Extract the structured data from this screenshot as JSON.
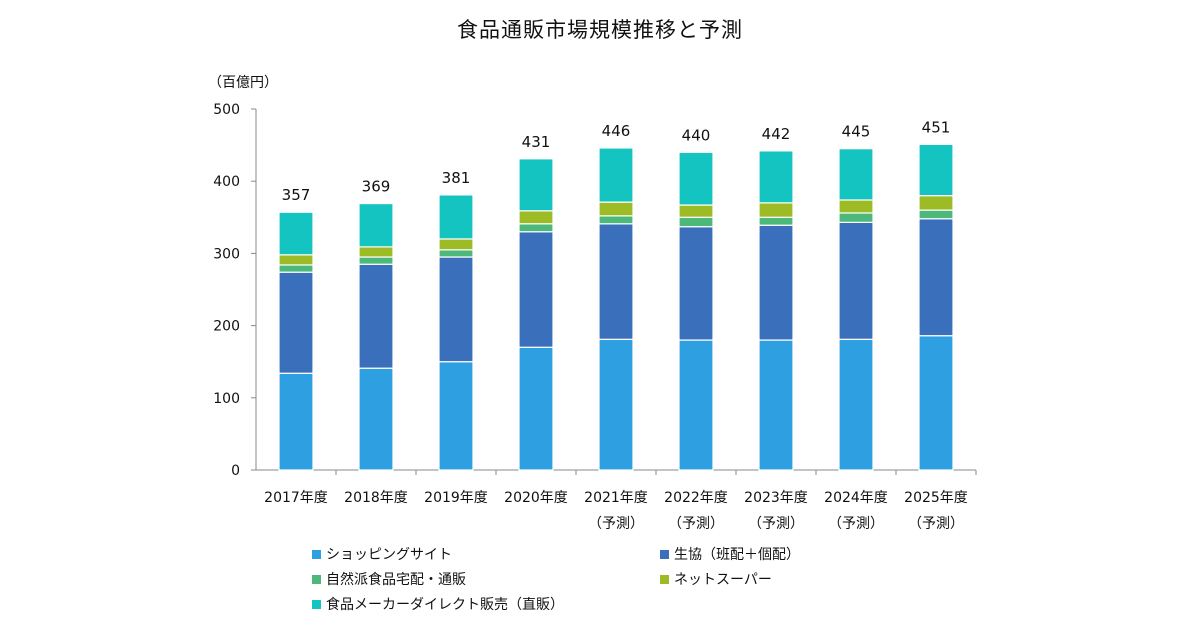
{
  "chart_data": {
    "type": "bar",
    "stacked": true,
    "title": "食品通販市場規模推移と予測",
    "ylabel": "（百億円）",
    "xlabel": "",
    "ylim": [
      0,
      500
    ],
    "yticks": [
      0,
      100,
      200,
      300,
      400,
      500
    ],
    "grid": false,
    "legend_position": "bottom",
    "categories": [
      "2017年度",
      "2018年度",
      "2019年度",
      "2020年度",
      "2021年度",
      "2022年度",
      "2023年度",
      "2024年度",
      "2025年度"
    ],
    "category_sublabels": [
      "",
      "",
      "",
      "",
      "（予測）",
      "（予測）",
      "（予測）",
      "（予測）",
      "（予測）"
    ],
    "totals": [
      357,
      369,
      381,
      431,
      446,
      440,
      442,
      445,
      451
    ],
    "series": [
      {
        "name": "ショッピングサイト",
        "color": "#2e9fe0",
        "values": [
          134,
          141,
          150,
          170,
          181,
          180,
          180,
          181,
          186
        ]
      },
      {
        "name": "生協（班配＋個配）",
        "color": "#3a6fbb",
        "values": [
          140,
          144,
          145,
          160,
          160,
          157,
          159,
          162,
          162
        ]
      },
      {
        "name": "自然派食品宅配・通販",
        "color": "#4cb87a",
        "values": [
          10,
          10,
          10,
          11,
          11,
          13,
          11,
          13,
          12
        ]
      },
      {
        "name": "ネットスーパー",
        "color": "#9cbb24",
        "values": [
          14,
          14,
          15,
          18,
          19,
          17,
          20,
          18,
          20
        ]
      },
      {
        "name": "食品メーカーダイレクト販売（直販）",
        "color": "#14c4c0",
        "values": [
          59,
          60,
          61,
          72,
          75,
          73,
          72,
          71,
          71
        ]
      }
    ]
  }
}
